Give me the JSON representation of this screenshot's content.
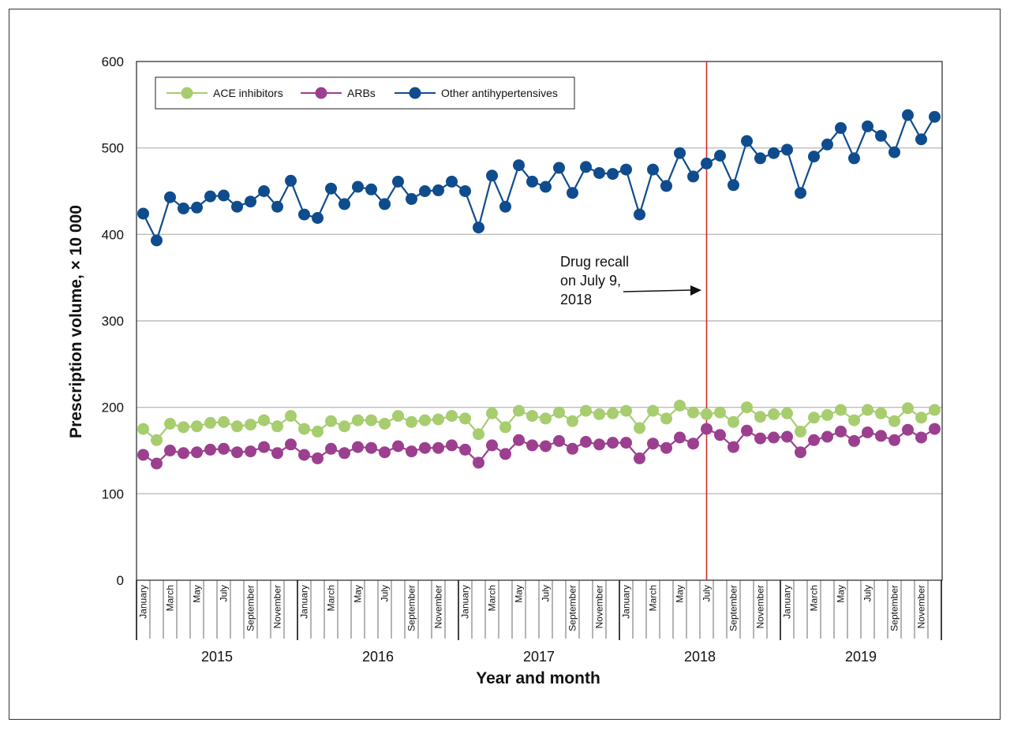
{
  "chart_data": {
    "type": "line",
    "xlabel": "Year and month",
    "ylabel": "Prescription volume, × 10 000",
    "ylim": [
      0,
      600
    ],
    "yticks": [
      0,
      100,
      200,
      300,
      400,
      500,
      600
    ],
    "grid": "horizontal",
    "legend_position": "top-left",
    "years": [
      "2015",
      "2016",
      "2017",
      "2018",
      "2019"
    ],
    "month_labels": [
      "January",
      "March",
      "May",
      "July",
      "September",
      "November"
    ],
    "series": [
      {
        "name": "ACE inhibitors",
        "color": "#a7cd6f",
        "values": [
          175,
          162,
          181,
          177,
          178,
          182,
          183,
          178,
          180,
          185,
          178,
          190,
          175,
          172,
          184,
          178,
          185,
          185,
          181,
          190,
          183,
          185,
          186,
          190,
          187,
          169,
          193,
          177,
          196,
          190,
          187,
          194,
          184,
          196,
          192,
          193,
          196,
          176,
          196,
          187,
          202,
          194,
          192,
          194,
          183,
          200,
          189,
          192,
          193,
          172,
          188,
          191,
          197,
          185,
          197,
          193,
          184,
          199,
          188,
          197
        ]
      },
      {
        "name": "ARBs",
        "color": "#9c3f8f",
        "values": [
          145,
          135,
          150,
          147,
          148,
          151,
          152,
          148,
          149,
          154,
          147,
          157,
          145,
          141,
          152,
          147,
          154,
          153,
          148,
          155,
          149,
          153,
          153,
          156,
          151,
          136,
          156,
          146,
          162,
          156,
          155,
          161,
          152,
          160,
          157,
          159,
          159,
          141,
          158,
          153,
          165,
          158,
          175,
          168,
          154,
          173,
          164,
          165,
          166,
          148,
          162,
          166,
          172,
          161,
          171,
          167,
          162,
          174,
          165,
          175
        ]
      },
      {
        "name": "Other antihypertensives",
        "color": "#0f4c8e",
        "values": [
          424,
          393,
          443,
          430,
          431,
          444,
          445,
          432,
          438,
          450,
          432,
          462,
          423,
          419,
          453,
          435,
          455,
          452,
          435,
          461,
          441,
          450,
          451,
          461,
          450,
          408,
          468,
          432,
          480,
          461,
          455,
          477,
          448,
          478,
          471,
          470,
          475,
          423,
          475,
          456,
          494,
          467,
          482,
          491,
          457,
          508,
          488,
          494,
          498,
          448,
          490,
          504,
          523,
          488,
          525,
          514,
          495,
          538,
          510,
          536
        ]
      }
    ],
    "annotation": {
      "lines": [
        "Drug recall",
        "on July 9,",
        "2018"
      ],
      "x_month_index": 42,
      "line_color": "#d42a2a"
    }
  }
}
